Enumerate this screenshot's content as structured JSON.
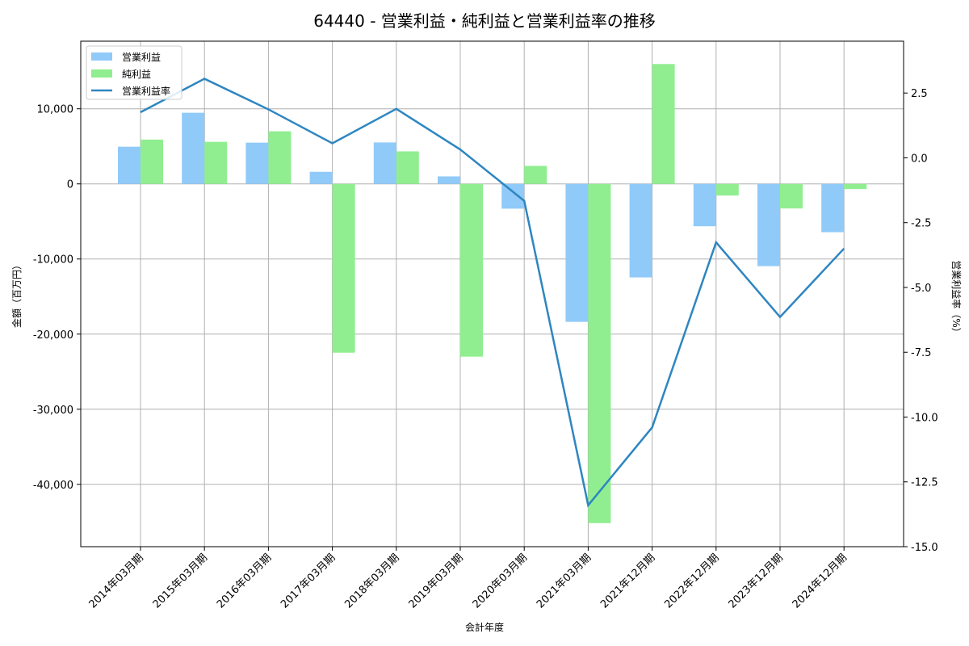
{
  "chart_data": {
    "type": "bar+line",
    "title": "64440 - 営業利益・純利益と営業利益率の推移",
    "xlabel": "会計年度",
    "ylabel": "金額（百万円）",
    "ylabel_right": "営業利益率（%）",
    "categories": [
      "2014年03月期",
      "2015年03月期",
      "2016年03月期",
      "2017年03月期",
      "2018年03月期",
      "2019年03月期",
      "2020年03月期",
      "2021年03月期",
      "2021年12月期",
      "2022年12月期",
      "2023年12月期",
      "2024年12月期"
    ],
    "series": [
      {
        "name": "営業利益",
        "type": "bar",
        "axis": "left",
        "color": "#90CAF9",
        "values": [
          4950,
          9470,
          5490,
          1610,
          5520,
          1000,
          -3300,
          -18370,
          -12450,
          -5640,
          -10950,
          -6430
        ]
      },
      {
        "name": "純利益",
        "type": "bar",
        "axis": "left",
        "color": "#90EE90",
        "values": [
          5900,
          5600,
          7000,
          -22470,
          4330,
          -23000,
          2400,
          -45160,
          15960,
          -1550,
          -3270,
          -690
        ]
      },
      {
        "name": "営業利益率",
        "type": "line",
        "axis": "right",
        "color": "#2E86C1",
        "values": [
          1.76,
          3.05,
          1.87,
          0.56,
          1.89,
          0.32,
          -1.66,
          -13.4,
          -10.4,
          -3.26,
          -6.14,
          -3.5
        ]
      }
    ],
    "ylim": [
      -48300,
      19000
    ],
    "ylim_right": [
      -15.0,
      4.5
    ],
    "yticks": [
      10000,
      0,
      -10000,
      -20000,
      -30000,
      -40000
    ],
    "ytick_labels": [
      "10,000",
      "0",
      "-10,000",
      "-20,000",
      "-30,000",
      "-40,000"
    ],
    "yticks_right": [
      2.5,
      0.0,
      -2.5,
      -5.0,
      -7.5,
      -10.0,
      -12.5,
      -15.0
    ],
    "ytick_labels_right": [
      "2.5",
      "0.0",
      "-2.5",
      "-5.0",
      "-7.5",
      "-10.0",
      "-12.5",
      "-15.0"
    ],
    "grid": true,
    "legend_position": "upper left"
  }
}
